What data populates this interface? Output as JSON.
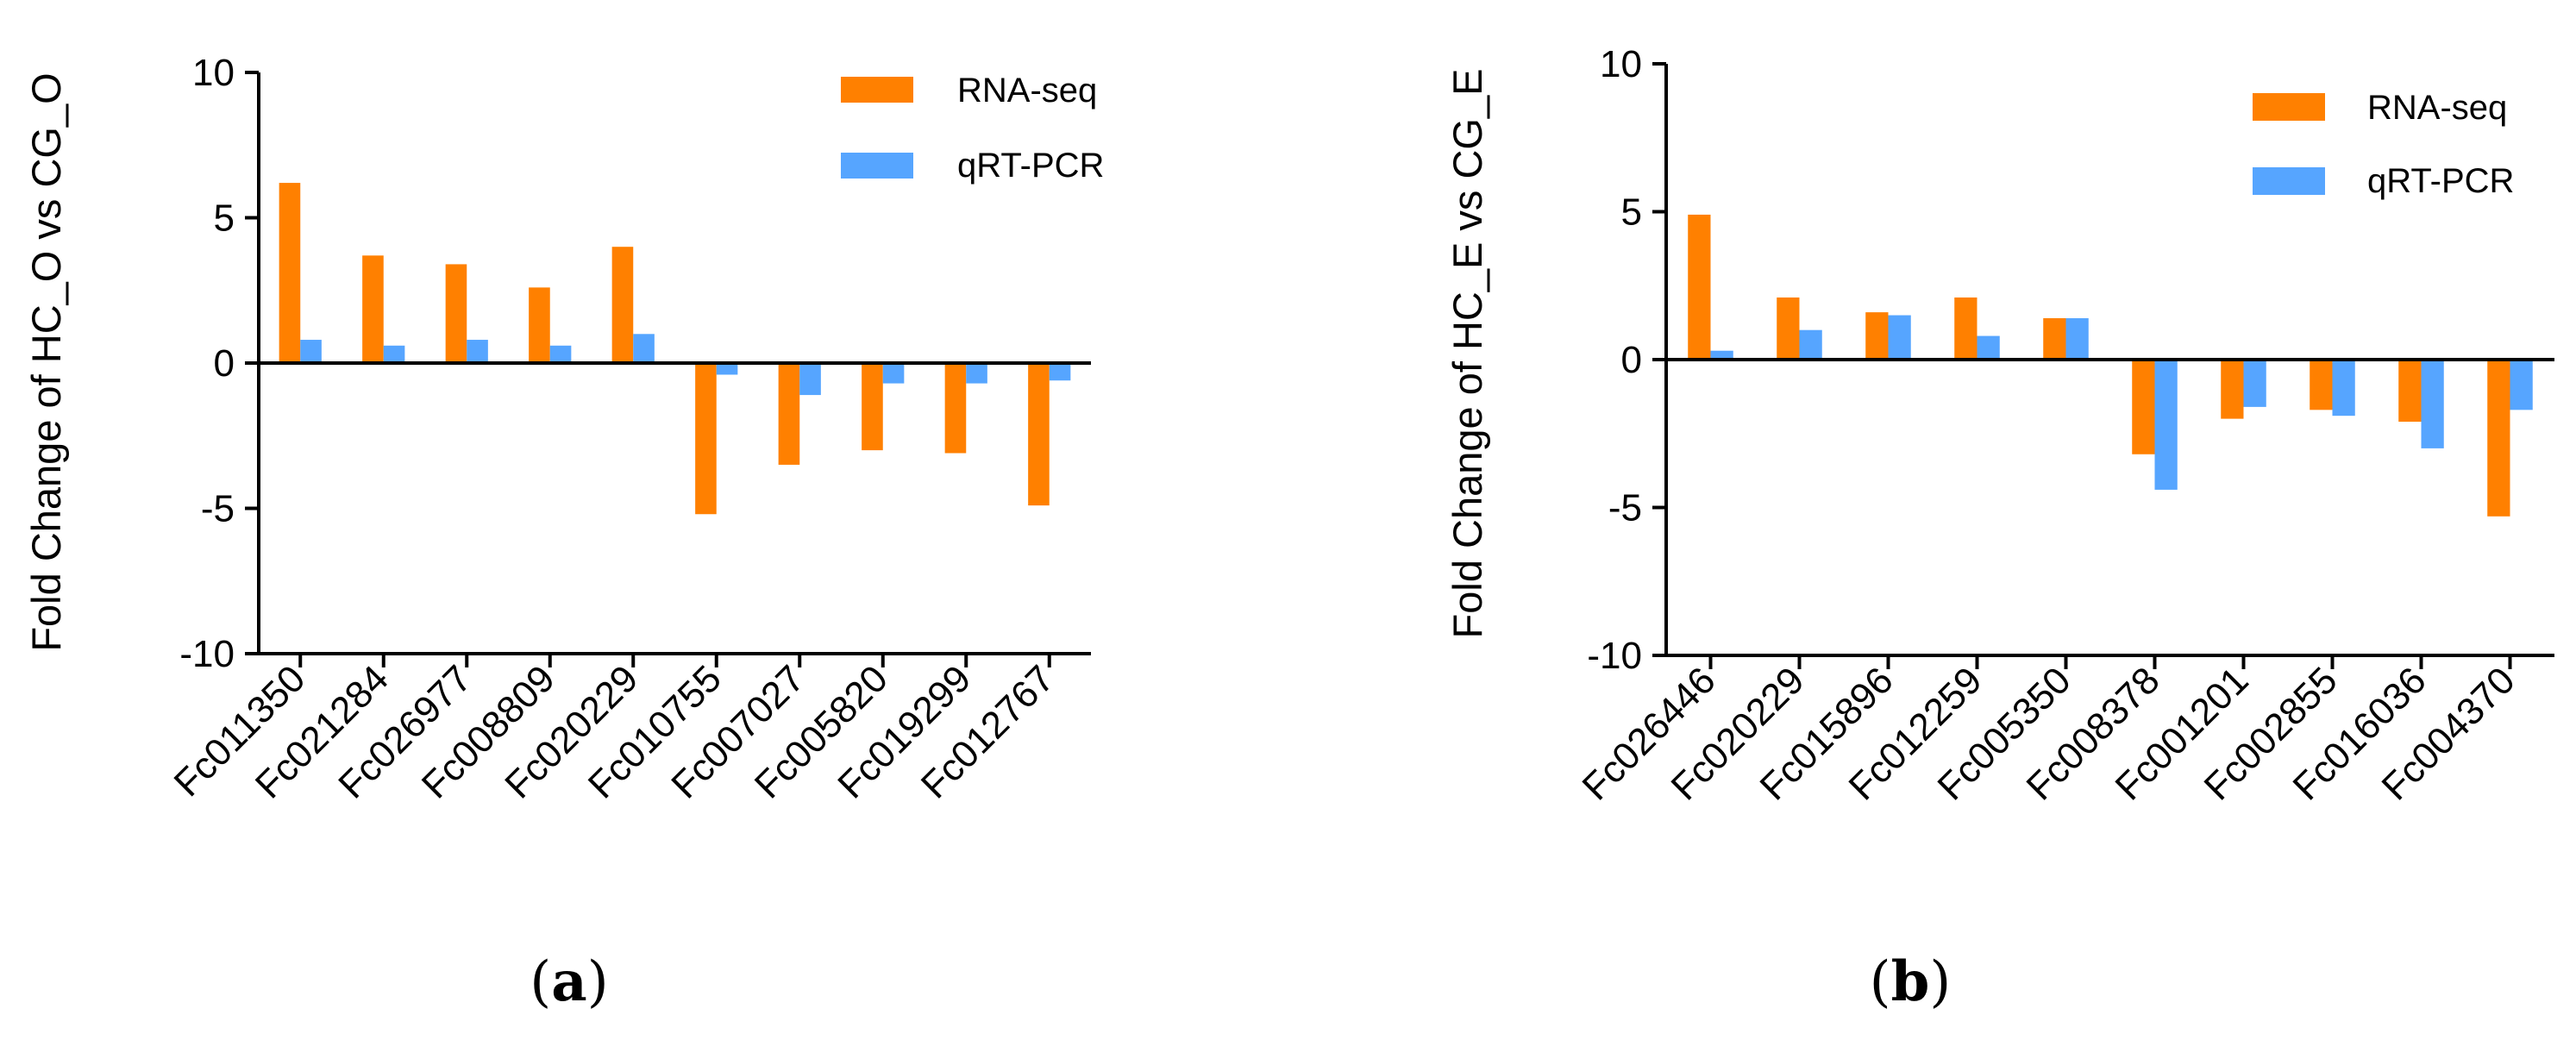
{
  "colors": {
    "rna_seq": "#FF8000",
    "qrt_pcr": "#56A5FF",
    "axis": "#000000"
  },
  "chart_data": [
    {
      "type": "bar",
      "panel_label": "a",
      "title": "",
      "xlabel": "",
      "ylabel": "Fold Change of HC_O vs CG_O",
      "ylim": [
        -10,
        10
      ],
      "yticks": [
        10,
        5,
        0,
        -5,
        -10
      ],
      "ytick_labels": [
        "10",
        "5",
        "0",
        "-5",
        "-10"
      ],
      "legend_position": "top-right",
      "categories": [
        "Fc011350",
        "Fc021284",
        "Fc026977",
        "Fc008809",
        "Fc020229",
        "Fc010755",
        "Fc007027",
        "Fc005820",
        "Fc019299",
        "Fc012767"
      ],
      "series": [
        {
          "name": "RNA-seq",
          "color_key": "rna_seq",
          "values": [
            6.2,
            3.7,
            3.4,
            2.6,
            4.0,
            -5.2,
            -3.5,
            -3.0,
            -3.1,
            -4.9
          ]
        },
        {
          "name": "qRT-PCR",
          "color_key": "qrt_pcr",
          "values": [
            0.8,
            0.6,
            0.8,
            0.6,
            1.0,
            -0.4,
            -1.1,
            -0.7,
            -0.7,
            -0.6
          ]
        }
      ]
    },
    {
      "type": "bar",
      "panel_label": "b",
      "title": "",
      "xlabel": "",
      "ylabel": "Fold Change of HC_E vs CG_E",
      "ylim": [
        -10,
        10
      ],
      "yticks": [
        10,
        5,
        0,
        -5,
        -10
      ],
      "ytick_labels": [
        "10",
        "5",
        "0",
        "-5",
        "-10"
      ],
      "legend_position": "top-right",
      "categories": [
        "Fc026446",
        "Fc020229",
        "Fc015896",
        "Fc012259",
        "Fc005350",
        "Fc008378",
        "Fc001201",
        "Fc002855",
        "Fc016036",
        "Fc004370"
      ],
      "series": [
        {
          "name": "RNA-seq",
          "color_key": "rna_seq",
          "values": [
            4.9,
            2.1,
            1.6,
            2.1,
            1.4,
            -3.2,
            -2.0,
            -1.7,
            -2.1,
            -5.3
          ]
        },
        {
          "name": "qRT-PCR",
          "color_key": "qrt_pcr",
          "values": [
            0.3,
            1.0,
            1.5,
            0.8,
            1.4,
            -4.4,
            -1.6,
            -1.9,
            -3.0,
            -1.7
          ]
        }
      ]
    }
  ]
}
